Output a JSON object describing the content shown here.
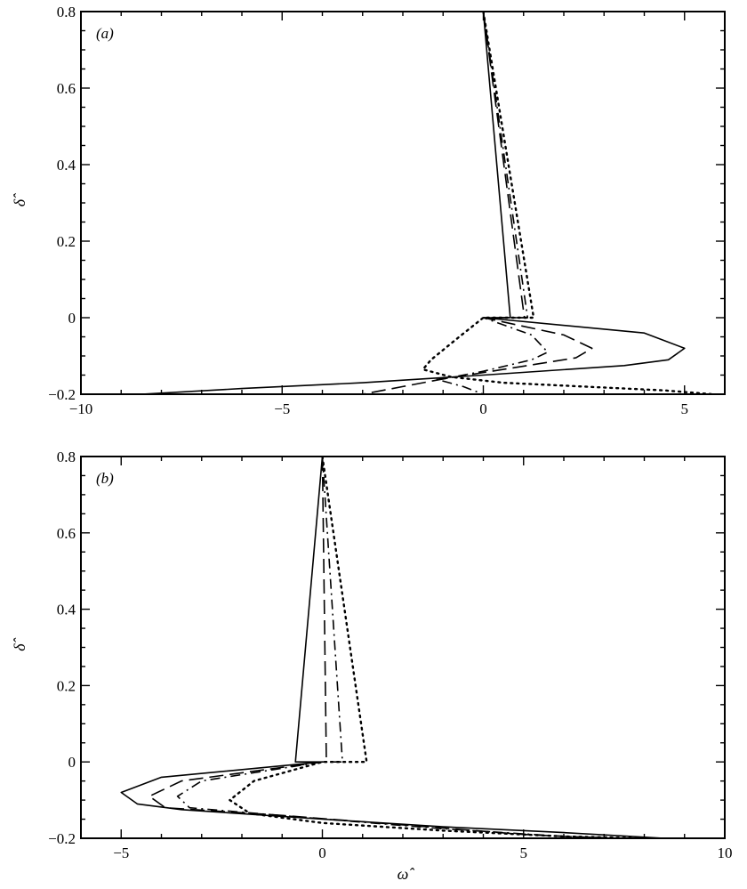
{
  "chart_data": [
    {
      "type": "line",
      "panel_label": "(a)",
      "xlabel": "",
      "ylabel": "δ̂",
      "xlim": [
        -10,
        6
      ],
      "ylim": [
        -0.2,
        0.8
      ],
      "x_ticks": [
        -10,
        -5,
        0,
        5
      ],
      "y_ticks": [
        -0.2,
        0,
        0.2,
        0.4,
        0.6,
        0.8
      ],
      "x_tick_labels": [
        "−10",
        "−5",
        "0",
        "5"
      ],
      "y_tick_labels": [
        "−0.2",
        "0",
        "0.2",
        "0.4",
        "0.6",
        "0.8"
      ],
      "grid": false,
      "series": [
        {
          "style": "solid",
          "points": [
            [
              0.0,
              0.8
            ],
            [
              0.67,
              0.0
            ],
            [
              0,
              0.0
            ],
            [
              4.0,
              -0.04
            ],
            [
              5.0,
              -0.08
            ],
            [
              4.6,
              -0.11
            ],
            [
              3.5,
              -0.125
            ],
            [
              0.0,
              -0.15
            ],
            [
              -3.0,
              -0.17
            ],
            [
              -6.0,
              -0.185
            ],
            [
              -8.5,
              -0.2
            ]
          ]
        },
        {
          "style": "dashed",
          "points": [
            [
              0.0,
              0.8
            ],
            [
              1.02,
              0.0
            ],
            [
              0,
              0.0
            ],
            [
              2.0,
              -0.045
            ],
            [
              2.7,
              -0.08
            ],
            [
              2.3,
              -0.105
            ],
            [
              0.5,
              -0.135
            ],
            [
              -1.0,
              -0.16
            ],
            [
              -2.0,
              -0.18
            ],
            [
              -3.0,
              -0.2
            ]
          ]
        },
        {
          "style": "dashdot",
          "points": [
            [
              0.0,
              0.8
            ],
            [
              1.1,
              0.0
            ],
            [
              0,
              0.0
            ],
            [
              1.2,
              -0.045
            ],
            [
              1.6,
              -0.09
            ],
            [
              1.2,
              -0.11
            ],
            [
              0.0,
              -0.14
            ],
            [
              -1.0,
              -0.16
            ],
            [
              -1.2,
              -0.16
            ],
            [
              -0.5,
              -0.18
            ],
            [
              0.0,
              -0.2
            ]
          ]
        },
        {
          "style": "dotted",
          "points": [
            [
              0.0,
              0.8
            ],
            [
              1.25,
              0.0
            ],
            [
              0,
              0.0
            ],
            [
              -0.6,
              -0.05
            ],
            [
              -1.3,
              -0.11
            ],
            [
              -1.5,
              -0.135
            ],
            [
              -0.8,
              -0.155
            ],
            [
              0.5,
              -0.17
            ],
            [
              2.5,
              -0.18
            ],
            [
              4.5,
              -0.19
            ],
            [
              5.7,
              -0.2
            ]
          ]
        }
      ]
    },
    {
      "type": "line",
      "panel_label": "(b)",
      "xlabel": "ω̂",
      "ylabel": "δ̂",
      "xlim": [
        -6,
        10
      ],
      "ylim": [
        -0.2,
        0.8
      ],
      "x_ticks": [
        -5,
        0,
        5,
        10
      ],
      "y_ticks": [
        -0.2,
        0,
        0.2,
        0.4,
        0.6,
        0.8
      ],
      "x_tick_labels": [
        "−5",
        "0",
        "5",
        "10"
      ],
      "y_tick_labels": [
        "−0.2",
        "0",
        "0.2",
        "0.4",
        "0.6",
        "0.8"
      ],
      "grid": false,
      "series": [
        {
          "style": "solid",
          "points": [
            [
              0.0,
              0.8
            ],
            [
              -0.67,
              0.0
            ],
            [
              0,
              0.0
            ],
            [
              -4.0,
              -0.04
            ],
            [
              -5.0,
              -0.08
            ],
            [
              -4.6,
              -0.11
            ],
            [
              -3.5,
              -0.125
            ],
            [
              0.0,
              -0.15
            ],
            [
              3.0,
              -0.17
            ],
            [
              6.0,
              -0.185
            ],
            [
              8.5,
              -0.2
            ]
          ]
        },
        {
          "style": "dashed",
          "points": [
            [
              0.0,
              0.8
            ],
            [
              0.1,
              0.0
            ],
            [
              0,
              0.0
            ],
            [
              -3.5,
              -0.05
            ],
            [
              -4.3,
              -0.09
            ],
            [
              -3.9,
              -0.12
            ],
            [
              -1.0,
              -0.14
            ],
            [
              2.0,
              -0.165
            ],
            [
              5.0,
              -0.19
            ],
            [
              7.0,
              -0.2
            ]
          ]
        },
        {
          "style": "dashdot",
          "points": [
            [
              0.0,
              0.8
            ],
            [
              0.5,
              0.0
            ],
            [
              0,
              0.0
            ],
            [
              -3.0,
              -0.05
            ],
            [
              -3.6,
              -0.09
            ],
            [
              -3.3,
              -0.12
            ],
            [
              -0.5,
              -0.145
            ],
            [
              3.0,
              -0.175
            ],
            [
              6.0,
              -0.195
            ],
            [
              7.5,
              -0.2
            ]
          ]
        },
        {
          "style": "dotted",
          "points": [
            [
              0.0,
              0.8
            ],
            [
              1.1,
              0.0
            ],
            [
              0,
              0.0
            ],
            [
              -1.7,
              -0.05
            ],
            [
              -2.3,
              -0.1
            ],
            [
              -1.8,
              -0.135
            ],
            [
              0.0,
              -0.16
            ],
            [
              3.0,
              -0.18
            ],
            [
              6.0,
              -0.195
            ],
            [
              8.0,
              -0.2
            ]
          ]
        }
      ]
    }
  ]
}
